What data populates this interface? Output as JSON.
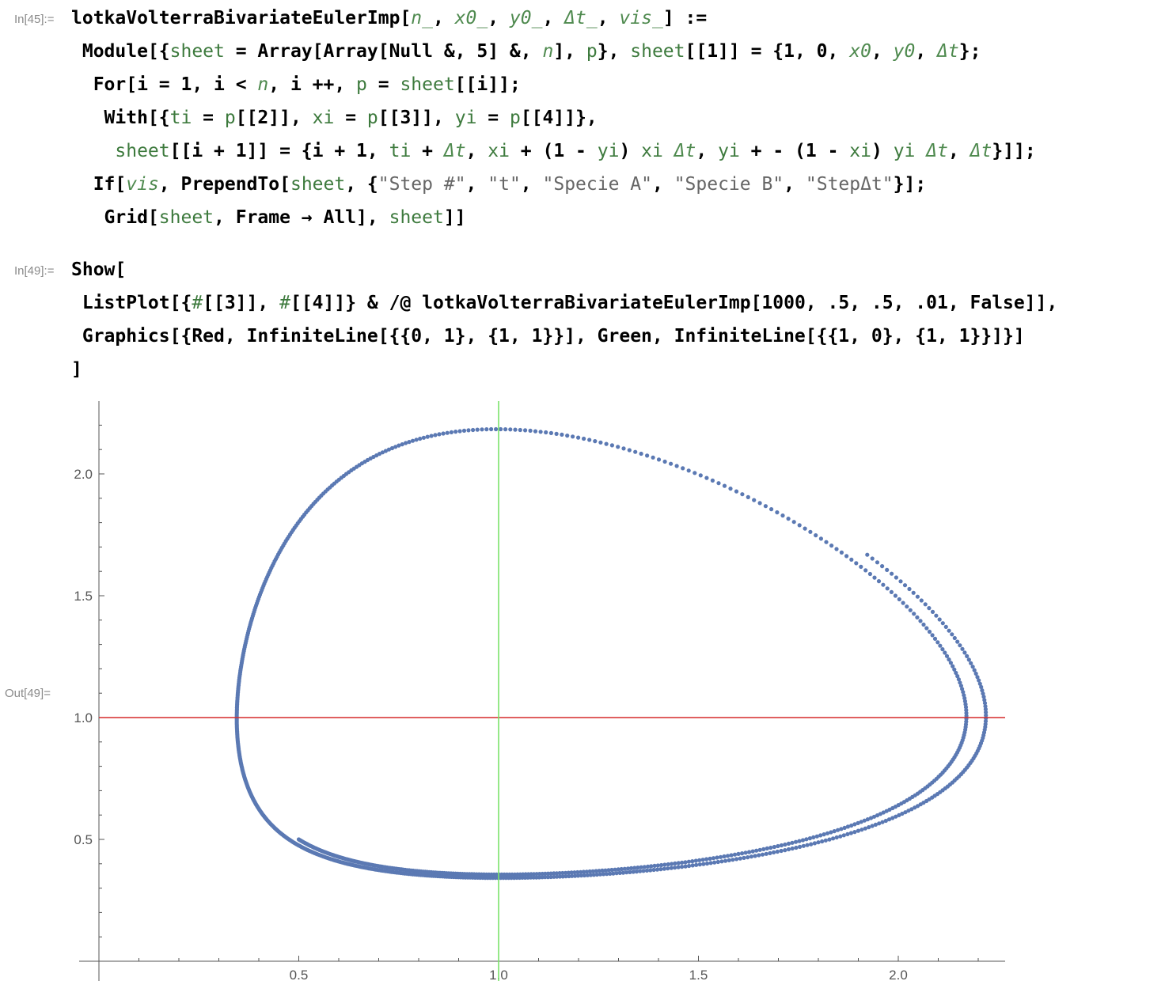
{
  "cells": {
    "in45": {
      "label": "In[45]:=",
      "lines": [
        [
          {
            "t": "lotkaVolterraBivariateEulerImp[",
            "c": "k"
          },
          {
            "t": "n_",
            "c": "gi"
          },
          {
            "t": ", ",
            "c": "k"
          },
          {
            "t": "x0_",
            "c": "gi"
          },
          {
            "t": ", ",
            "c": "k"
          },
          {
            "t": "y0_",
            "c": "gi"
          },
          {
            "t": ", ",
            "c": "k"
          },
          {
            "t": "Δt_",
            "c": "gi"
          },
          {
            "t": ", ",
            "c": "k"
          },
          {
            "t": "vis_",
            "c": "gi"
          },
          {
            "t": "] :=",
            "c": "k"
          }
        ],
        [
          {
            "t": " Module[{",
            "c": "k"
          },
          {
            "t": "sheet",
            "c": "g"
          },
          {
            "t": " = Array[Array[Null &, 5] &, ",
            "c": "k"
          },
          {
            "t": "n",
            "c": "gi"
          },
          {
            "t": "], ",
            "c": "k"
          },
          {
            "t": "p",
            "c": "g"
          },
          {
            "t": "}, ",
            "c": "k"
          },
          {
            "t": "sheet",
            "c": "g"
          },
          {
            "t": "[[1]] = {1, 0, ",
            "c": "k"
          },
          {
            "t": "x0",
            "c": "gi"
          },
          {
            "t": ", ",
            "c": "k"
          },
          {
            "t": "y0",
            "c": "gi"
          },
          {
            "t": ", ",
            "c": "k"
          },
          {
            "t": "Δt",
            "c": "gi"
          },
          {
            "t": "};",
            "c": "k"
          }
        ],
        [
          {
            "t": "  For[i = 1, i < ",
            "c": "k"
          },
          {
            "t": "n",
            "c": "gi"
          },
          {
            "t": ", i ++, ",
            "c": "k"
          },
          {
            "t": "p",
            "c": "g"
          },
          {
            "t": " = ",
            "c": "k"
          },
          {
            "t": "sheet",
            "c": "g"
          },
          {
            "t": "[[i]];",
            "c": "k"
          }
        ],
        [
          {
            "t": "   With[{",
            "c": "k"
          },
          {
            "t": "ti",
            "c": "g"
          },
          {
            "t": " = ",
            "c": "k"
          },
          {
            "t": "p",
            "c": "g"
          },
          {
            "t": "[[2]], ",
            "c": "k"
          },
          {
            "t": "xi",
            "c": "g"
          },
          {
            "t": " = ",
            "c": "k"
          },
          {
            "t": "p",
            "c": "g"
          },
          {
            "t": "[[3]], ",
            "c": "k"
          },
          {
            "t": "yi",
            "c": "g"
          },
          {
            "t": " = ",
            "c": "k"
          },
          {
            "t": "p",
            "c": "g"
          },
          {
            "t": "[[4]]},",
            "c": "k"
          }
        ],
        [
          {
            "t": "    ",
            "c": "k"
          },
          {
            "t": "sheet",
            "c": "g"
          },
          {
            "t": "[[i + 1]] = {i + 1, ",
            "c": "k"
          },
          {
            "t": "ti",
            "c": "g"
          },
          {
            "t": " + ",
            "c": "k"
          },
          {
            "t": "Δt",
            "c": "gi"
          },
          {
            "t": ", ",
            "c": "k"
          },
          {
            "t": "xi",
            "c": "g"
          },
          {
            "t": " + (1 - ",
            "c": "k"
          },
          {
            "t": "yi",
            "c": "g"
          },
          {
            "t": ") ",
            "c": "k"
          },
          {
            "t": "xi",
            "c": "g"
          },
          {
            "t": " ",
            "c": "k"
          },
          {
            "t": "Δt",
            "c": "gi"
          },
          {
            "t": ", ",
            "c": "k"
          },
          {
            "t": "yi",
            "c": "g"
          },
          {
            "t": " + - (1 - ",
            "c": "k"
          },
          {
            "t": "xi",
            "c": "g"
          },
          {
            "t": ") ",
            "c": "k"
          },
          {
            "t": "yi",
            "c": "g"
          },
          {
            "t": " ",
            "c": "k"
          },
          {
            "t": "Δt",
            "c": "gi"
          },
          {
            "t": ", ",
            "c": "k"
          },
          {
            "t": "Δt",
            "c": "gi"
          },
          {
            "t": "}]];",
            "c": "k"
          }
        ],
        [
          {
            "t": "  If[",
            "c": "k"
          },
          {
            "t": "vis",
            "c": "gi"
          },
          {
            "t": ", PrependTo[",
            "c": "k"
          },
          {
            "t": "sheet",
            "c": "g"
          },
          {
            "t": ", {",
            "c": "k"
          },
          {
            "t": "\"Step #\"",
            "c": "s"
          },
          {
            "t": ", ",
            "c": "k"
          },
          {
            "t": "\"t\"",
            "c": "s"
          },
          {
            "t": ", ",
            "c": "k"
          },
          {
            "t": "\"Specie A\"",
            "c": "s"
          },
          {
            "t": ", ",
            "c": "k"
          },
          {
            "t": "\"Specie B\"",
            "c": "s"
          },
          {
            "t": ", ",
            "c": "k"
          },
          {
            "t": "\"StepΔt\"",
            "c": "s"
          },
          {
            "t": "}];",
            "c": "k"
          }
        ],
        [
          {
            "t": "   Grid[",
            "c": "k"
          },
          {
            "t": "sheet",
            "c": "g"
          },
          {
            "t": ", Frame → All], ",
            "c": "k"
          },
          {
            "t": "sheet",
            "c": "g"
          },
          {
            "t": "]]",
            "c": "k"
          }
        ]
      ]
    },
    "in49": {
      "label": "In[49]:=",
      "lines": [
        [
          {
            "t": "Show[",
            "c": "k"
          }
        ],
        [
          {
            "t": " ListPlot[{",
            "c": "k"
          },
          {
            "t": "#",
            "c": "g"
          },
          {
            "t": "[[3]], ",
            "c": "k"
          },
          {
            "t": "#",
            "c": "g"
          },
          {
            "t": "[[4]]} & /@ lotkaVolterraBivariateEulerImp[1000, .5, .5, .01, False]],",
            "c": "k"
          }
        ],
        [
          {
            "t": " Graphics[{Red, InfiniteLine[{{0, 1}, {1, 1}}], Green, InfiniteLine[{{1, 0}, {1, 1}}]}]",
            "c": "k"
          }
        ],
        [
          {
            "t": "]",
            "c": "k"
          }
        ]
      ]
    },
    "out49": {
      "label": "Out[49]="
    }
  },
  "colors": {
    "points": "#5b79b3",
    "red_line": "#d62a2a",
    "green_line": "#7be36a",
    "axis": "#555555"
  },
  "chart_data": {
    "type": "scatter",
    "title": "",
    "xlabel": "",
    "ylabel": "",
    "xlim": [
      0,
      2.25
    ],
    "ylim": [
      0,
      2.3
    ],
    "xticks": [
      "0.5",
      "1.0",
      "1.5",
      "2.0"
    ],
    "yticks": [
      "0.5",
      "1.0",
      "1.5",
      "2.0"
    ],
    "grid": false,
    "series": [
      {
        "values": []
      }
    ],
    "reference_lines": [
      {
        "orientation": "horizontal",
        "value": 1.0,
        "color": "red"
      },
      {
        "orientation": "vertical",
        "value": 1.0,
        "color": "green"
      }
    ],
    "simulation": {
      "n": 1000,
      "x0": 0.5,
      "y0": 0.5,
      "dt": 0.01
    }
  }
}
